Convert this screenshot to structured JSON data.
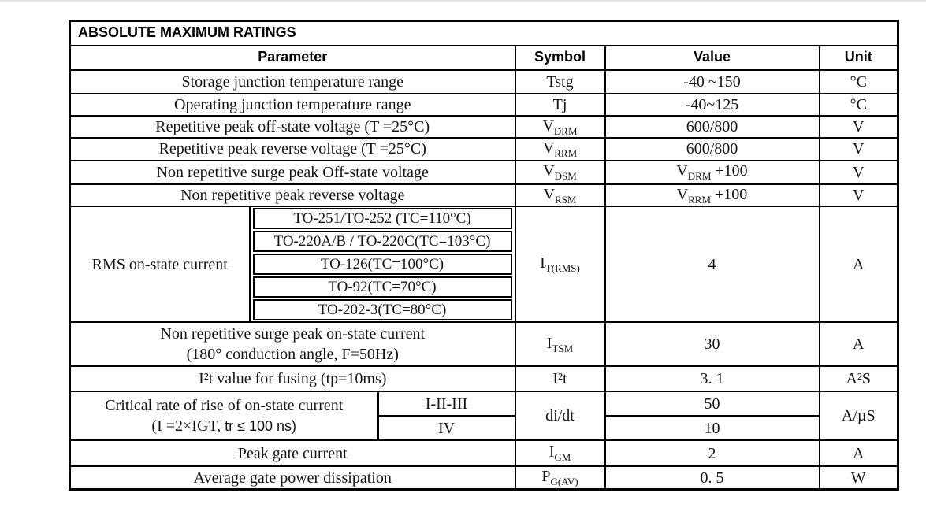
{
  "table": {
    "title": "ABSOLUTE MAXIMUM RATINGS",
    "headers": {
      "parameter": "Parameter",
      "symbol": "Symbol",
      "value": "Value",
      "unit": "Unit"
    },
    "simple_rows": [
      {
        "param": "Storage junction  temperature range",
        "symbol": "Tstg",
        "value": "-40 ~150",
        "unit": "°C"
      },
      {
        "param": "Operating junction temperature range",
        "symbol": "Tj",
        "value": "-40~125",
        "unit": "°C"
      },
      {
        "param": "Repetitive peak off-state voltage (T =25°C)",
        "sym_base": "V",
        "sym_sub": "DRM",
        "value": "600/800",
        "unit": "V"
      },
      {
        "param": "Repetitive peak reverse voltage (T =25°C)",
        "sym_base": "V",
        "sym_sub": "RRM",
        "value": "600/800",
        "unit": "V"
      },
      {
        "param": "Non repetitive surge peak Off-state voltage",
        "sym_base": "V",
        "sym_sub": "DSM",
        "val_base": "V",
        "val_sub": "DRM",
        "val_rest": " +100",
        "unit": "V"
      },
      {
        "param": "Non repetitive peak reverse voltage",
        "sym_base": "V",
        "sym_sub": "RSM",
        "val_base": "V",
        "val_sub": "RRM",
        "val_rest": " +100",
        "unit": "V"
      }
    ],
    "rms_block": {
      "label": "RMS on-state current",
      "packages": [
        "TO-251/TO-252 (TC=110°C)",
        "TO-220A/B / TO-220C(TC=103°C)",
        "TO-126(TC=100°C)",
        "TO-92(TC=70°C)",
        "TO-202-3(TC=80°C)"
      ],
      "sym_base": "I",
      "sym_sub": "T(RMS)",
      "value": "4",
      "unit": "A"
    },
    "surge_row": {
      "param_line1": "Non repetitive surge peak on-state current",
      "param_line2": "(180° conduction angle, F=50Hz)",
      "sym_base": "I",
      "sym_sub": "TSM",
      "value": "30",
      "unit": "A"
    },
    "fusing_row": {
      "param": "I²t value for fusing (tp=10ms)",
      "symbol": "I²t",
      "value": "3. 1",
      "unit": "A²S"
    },
    "didt_block": {
      "param_line1": "Critical rate of rise of on-state current",
      "param_line2_serif": "(I =2×IGT, ",
      "param_line2_sans": " tr ≤ 100 ns)",
      "classes": [
        "I-II-III",
        "IV"
      ],
      "values": [
        "50",
        "10"
      ],
      "symbol": "di/dt",
      "unit": "A/µS"
    },
    "gate_rows": [
      {
        "param": "Peak gate current",
        "sym_base": "I",
        "sym_sub": "GM",
        "value": "2",
        "unit": "A"
      },
      {
        "param": "Average gate power dissipation",
        "sym_base": "P",
        "sym_sub": "G(AV)",
        "value": "0. 5",
        "unit": "W"
      }
    ]
  },
  "colors": {
    "border": "#000000",
    "text": "#141414",
    "background": "#ffffff"
  }
}
